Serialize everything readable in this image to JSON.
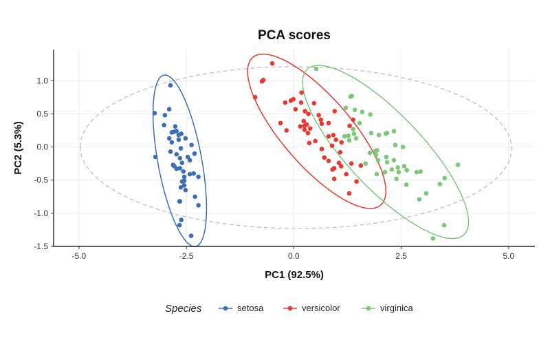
{
  "chart_data": {
    "type": "scatter",
    "title": "PCA scores",
    "xlabel": "PC1 (92.5%)",
    "ylabel": "PC2 (5.3%)",
    "xlim": [
      -5.59,
      5.61
    ],
    "ylim": [
      -1.5,
      1.47
    ],
    "xticks": [
      -5.0,
      -2.5,
      0.0,
      2.5,
      5.0
    ],
    "xtick_labels": [
      "-5.0",
      "-2.5",
      "0.0",
      "2.5",
      "5.0"
    ],
    "yticks": [
      -1.5,
      -1.0,
      -0.5,
      0.0,
      0.5,
      1.0
    ],
    "ytick_labels": [
      "-1.5",
      "-1.0",
      "-0.5",
      "0.0",
      "0.5",
      "1.0"
    ],
    "grid": true,
    "legend": {
      "title": "Species",
      "position": "bottom"
    },
    "overall_ellipse": {
      "color": "#bbbbbb",
      "style": "dashed"
    },
    "series": [
      {
        "name": "setosa",
        "color": "#3a6db3",
        "points": [
          [
            -2.87,
            0.93
          ],
          [
            -3.24,
            0.51
          ],
          [
            -2.9,
            0.57
          ],
          [
            -3.0,
            0.48
          ],
          [
            -3.02,
            0.33
          ],
          [
            -2.76,
            0.31
          ],
          [
            -2.84,
            0.22
          ],
          [
            -2.79,
            0.23
          ],
          [
            -2.73,
            0.24
          ],
          [
            -2.68,
            0.18
          ],
          [
            -2.62,
            0.2
          ],
          [
            -2.9,
            0.13
          ],
          [
            -2.84,
            0.07
          ],
          [
            -2.68,
            0.11
          ],
          [
            -2.52,
            0.13
          ],
          [
            -2.38,
            0.03
          ],
          [
            -2.63,
            -0.02
          ],
          [
            -2.87,
            -0.07
          ],
          [
            -2.31,
            -0.1
          ],
          [
            -3.22,
            -0.15
          ],
          [
            -2.73,
            -0.11
          ],
          [
            -2.65,
            -0.17
          ],
          [
            -2.47,
            -0.15
          ],
          [
            -2.42,
            -0.2
          ],
          [
            -2.6,
            -0.24
          ],
          [
            -2.81,
            -0.27
          ],
          [
            -2.78,
            -0.29
          ],
          [
            -2.73,
            -0.33
          ],
          [
            -2.65,
            -0.32
          ],
          [
            -2.57,
            -0.37
          ],
          [
            -2.55,
            -0.45
          ],
          [
            -2.42,
            -0.41
          ],
          [
            -2.33,
            -0.4
          ],
          [
            -2.22,
            -0.45
          ],
          [
            -2.6,
            -0.52
          ],
          [
            -2.55,
            -0.51
          ],
          [
            -2.63,
            -0.61
          ],
          [
            -2.55,
            -0.58
          ],
          [
            -2.52,
            -0.65
          ],
          [
            -2.3,
            -0.75
          ],
          [
            -2.66,
            -0.82
          ],
          [
            -2.65,
            -0.82
          ],
          [
            -2.22,
            -0.88
          ],
          [
            -2.62,
            -1.1
          ],
          [
            -2.66,
            -1.18
          ],
          [
            -2.39,
            -1.34
          ]
        ]
      },
      {
        "name": "versicolor",
        "color": "#e8382f",
        "points": [
          [
            -0.5,
            1.26
          ],
          [
            -0.74,
            0.99
          ],
          [
            -0.71,
            1.01
          ],
          [
            -0.9,
            0.75
          ],
          [
            0.18,
            0.82
          ],
          [
            -0.2,
            0.67
          ],
          [
            -0.07,
            0.7
          ],
          [
            -0.01,
            0.72
          ],
          [
            0.17,
            0.67
          ],
          [
            0.47,
            0.66
          ],
          [
            0.04,
            0.57
          ],
          [
            0.26,
            0.54
          ],
          [
            0.34,
            0.5
          ],
          [
            0.95,
            0.54
          ],
          [
            0.58,
            0.48
          ],
          [
            0.63,
            0.41
          ],
          [
            -0.31,
            0.36
          ],
          [
            0.23,
            0.39
          ],
          [
            0.3,
            0.34
          ],
          [
            0.15,
            0.31
          ],
          [
            0.25,
            0.32
          ],
          [
            0.38,
            0.28
          ],
          [
            0.65,
            0.35
          ],
          [
            0.81,
            0.36
          ],
          [
            -0.17,
            0.25
          ],
          [
            0.25,
            0.26
          ],
          [
            0.33,
            0.21
          ],
          [
            1.38,
            0.41
          ],
          [
            1.3,
            0.32
          ],
          [
            0.81,
            0.16
          ],
          [
            0.92,
            0.18
          ],
          [
            0.98,
            0.11
          ],
          [
            1.11,
            0.07
          ],
          [
            0.5,
            0.09
          ],
          [
            0.36,
            0.06
          ],
          [
            0.89,
            0.02
          ],
          [
            0.65,
            -0.03
          ],
          [
            1.08,
            -0.08
          ],
          [
            0.71,
            -0.16
          ],
          [
            0.81,
            -0.21
          ],
          [
            1.05,
            -0.24
          ],
          [
            1.1,
            -0.29
          ],
          [
            1.34,
            -0.25
          ],
          [
            1.56,
            -0.28
          ],
          [
            0.9,
            -0.34
          ],
          [
            0.94,
            -0.32
          ],
          [
            1.22,
            -0.41
          ],
          [
            0.94,
            -0.48
          ],
          [
            1.46,
            -0.52
          ],
          [
            1.29,
            -0.7
          ]
        ]
      },
      {
        "name": "virginica",
        "color": "#7cc87a",
        "points": [
          [
            0.52,
            1.18
          ],
          [
            1.32,
            0.76
          ],
          [
            1.35,
            0.77
          ],
          [
            1.21,
            0.59
          ],
          [
            1.42,
            0.56
          ],
          [
            1.59,
            0.53
          ],
          [
            1.78,
            0.49
          ],
          [
            1.53,
            0.36
          ],
          [
            1.38,
            0.27
          ],
          [
            1.18,
            0.16
          ],
          [
            1.27,
            0.17
          ],
          [
            1.4,
            0.2
          ],
          [
            1.29,
            0.1
          ],
          [
            1.45,
            0.13
          ],
          [
            1.8,
            0.21
          ],
          [
            1.98,
            0.18
          ],
          [
            2.14,
            0.2
          ],
          [
            2.17,
            0.21
          ],
          [
            2.33,
            0.24
          ],
          [
            2.36,
            0.03
          ],
          [
            2.54,
            0.0
          ],
          [
            1.77,
            -0.09
          ],
          [
            1.9,
            -0.06
          ],
          [
            1.94,
            -0.05
          ],
          [
            1.91,
            -0.12
          ],
          [
            1.96,
            -0.2
          ],
          [
            2.15,
            -0.15
          ],
          [
            2.17,
            -0.23
          ],
          [
            2.33,
            -0.2
          ],
          [
            1.67,
            -0.25
          ],
          [
            2.28,
            -0.34
          ],
          [
            2.42,
            -0.31
          ],
          [
            2.44,
            -0.38
          ],
          [
            2.57,
            -0.29
          ],
          [
            2.63,
            -0.35
          ],
          [
            2.12,
            -0.38
          ],
          [
            1.93,
            -0.41
          ],
          [
            2.39,
            -0.48
          ],
          [
            2.62,
            -0.57
          ],
          [
            2.86,
            -0.38
          ],
          [
            2.95,
            -0.37
          ],
          [
            3.82,
            -0.27
          ],
          [
            3.4,
            -0.56
          ],
          [
            3.51,
            -0.47
          ],
          [
            3.08,
            -0.7
          ],
          [
            2.92,
            -0.79
          ],
          [
            3.5,
            -1.18
          ],
          [
            3.24,
            -1.38
          ]
        ]
      }
    ]
  }
}
